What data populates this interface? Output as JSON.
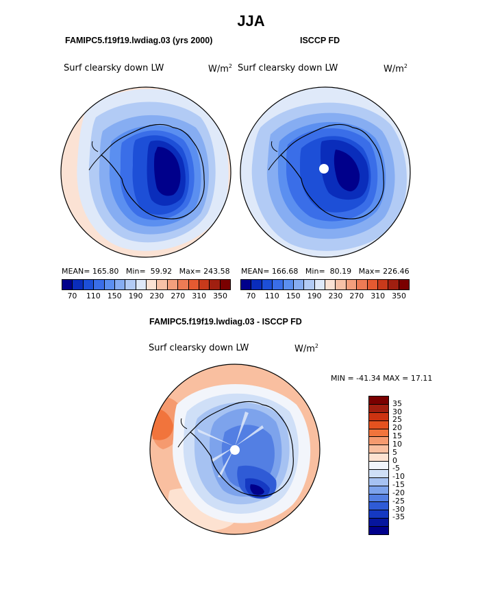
{
  "page": {
    "season": "JJA",
    "model_title": "FAMIPC5.f19f19.lwdiag.03 (yrs 2000)",
    "obs_title": "ISCCP FD",
    "diff_title": "FAMIPC5.f19f19.lwdiag.03 - ISCCP FD"
  },
  "panels": {
    "model": {
      "variable": "Surf clearsky down LW",
      "units": "W/m",
      "units_sup": "2",
      "mean_label": "MEAN=",
      "mean": "165.80",
      "min_label": "Min=",
      "min": "59.92",
      "max_label": "Max=",
      "max": "243.58"
    },
    "obs": {
      "variable": "Surf clearsky down LW",
      "units": "W/m",
      "units_sup": "2",
      "mean_label": "MEAN=",
      "mean": "166.68",
      "min_label": "Min=",
      "min": "80.19",
      "max_label": "Max=",
      "max": "226.46"
    },
    "diff": {
      "variable": "Surf clearsky down LW",
      "units": "W/m",
      "units_sup": "2",
      "minmax_text": "MIN = -41.34 MAX =  17.11"
    }
  },
  "colorbars": {
    "abs_colors": [
      "#00008b",
      "#0a2dbb",
      "#1d4fd7",
      "#3a6ee8",
      "#5b8ff0",
      "#86adf2",
      "#b2cbf5",
      "#dfe9f9",
      "#fbe2d4",
      "#f7c1a7",
      "#f49f7d",
      "#ee7b55",
      "#e55a31",
      "#c83a1b",
      "#a01f10",
      "#7a0000"
    ],
    "abs_ticks": [
      "70",
      "110",
      "150",
      "190",
      "230",
      "270",
      "310",
      "350"
    ],
    "diff_colors": [
      "#7a0000",
      "#a11e0f",
      "#cc3311",
      "#e5521f",
      "#f1743c",
      "#f59a6f",
      "#f9bfa0",
      "#fde2d1",
      "#f2f5fb",
      "#cfdff7",
      "#a6c2f2",
      "#7da3ec",
      "#537fe3",
      "#2f5bd6",
      "#1539c2",
      "#06169e",
      "#00008b"
    ],
    "diff_ticks": [
      "35",
      "30",
      "25",
      "20",
      "15",
      "10",
      "5",
      "0",
      "-5",
      "-10",
      "-15",
      "-20",
      "-25",
      "-30",
      "-35"
    ]
  }
}
